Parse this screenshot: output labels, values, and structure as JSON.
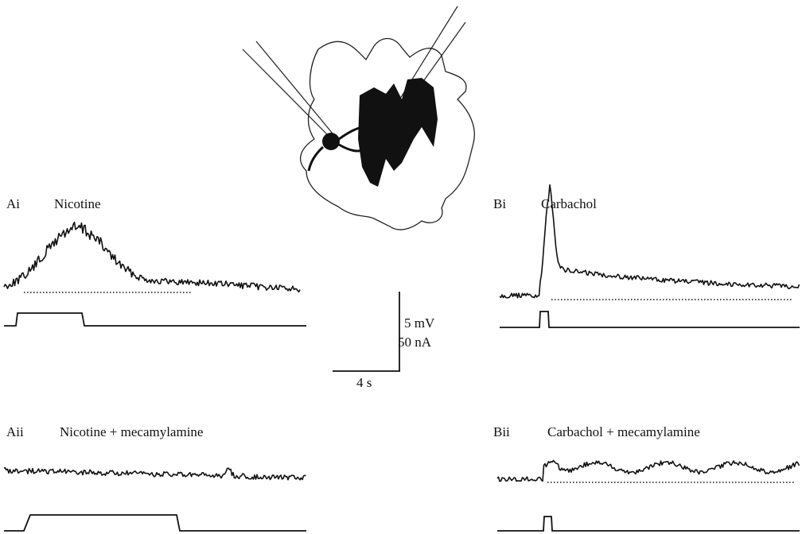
{
  "panels": [
    {
      "label": "Ai",
      "title": "Nicotine"
    },
    {
      "label": "Bi",
      "title": "Carbachol"
    },
    {
      "label": "Aii",
      "title": "Nicotine + mecamylamine"
    },
    {
      "label": "Bii",
      "title": "Carbachol + mecamylamine"
    }
  ],
  "scale_bar": {
    "voltage": "5 mV",
    "current": "50 nA",
    "time": "4 s"
  }
}
